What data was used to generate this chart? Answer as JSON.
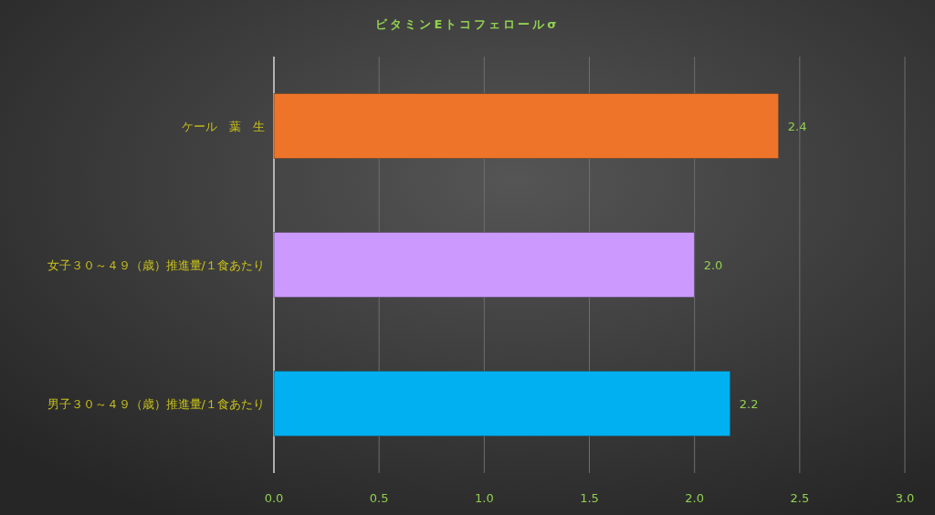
{
  "chart_data": {
    "type": "bar",
    "orientation": "horizontal",
    "title": "ビタミンEトコフェロールσ",
    "categories": [
      "ケール　葉　生",
      "女子３０～４９（歳）推進量/１食あたり",
      "男子３０～４９（歳）推進量/１食あたり"
    ],
    "values": [
      2.4,
      2.0,
      2.17
    ],
    "value_labels": [
      "2.4",
      "2.0",
      "2.2"
    ],
    "colors": [
      "#ed7428",
      "#cc99ff",
      "#00b0f0"
    ],
    "xlim": [
      0,
      3
    ],
    "xticks": [
      {
        "value": 0,
        "label": "0.0"
      },
      0.5,
      {
        "value": 1,
        "label": "1.0"
      },
      1.5,
      {
        "value": 2,
        "label": "2.0"
      },
      2.5,
      {
        "value": 3,
        "label": "3.0"
      }
    ],
    "grid": "x"
  }
}
